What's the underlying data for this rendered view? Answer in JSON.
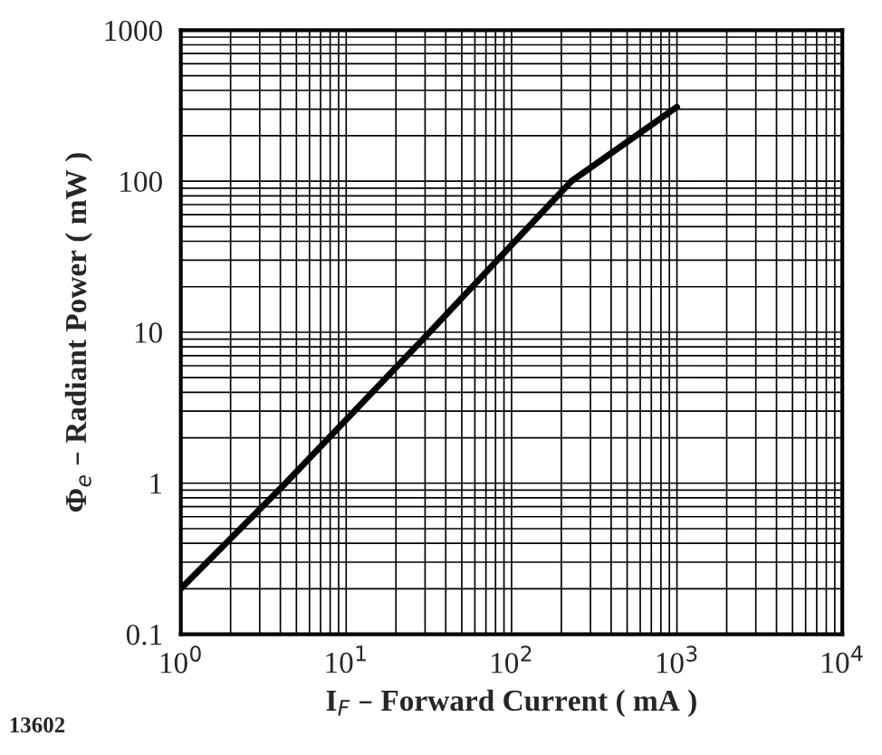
{
  "chart_data": {
    "type": "line",
    "xlabel": "I$_{F}$ – Forward Current ( mA )",
    "ylabel": "Φ$_{e}$ – Radiant Power ( mW )",
    "log": "xy",
    "grid": true,
    "annotations": [
      "13602"
    ],
    "xlim": [
      1,
      10000
    ],
    "xticks": [
      {
        "value": 1,
        "label": "10$^{0}$"
      },
      {
        "value": 10,
        "label": "10$^{1}$"
      },
      {
        "value": 100,
        "label": "10$^{2}$"
      },
      {
        "value": 1000,
        "label": "10$^{3}$"
      },
      {
        "value": 10000,
        "label": "10$^{4}$"
      }
    ],
    "ylim": [
      0.1,
      1000
    ],
    "yticks": [
      0.1,
      1,
      10,
      100,
      1000
    ],
    "series": [
      {
        "color": "#000000",
        "x": [
          1,
          4.3,
          32,
          230,
          1000
        ],
        "values": [
          0.2,
          1,
          10,
          100,
          310
        ]
      }
    ]
  }
}
